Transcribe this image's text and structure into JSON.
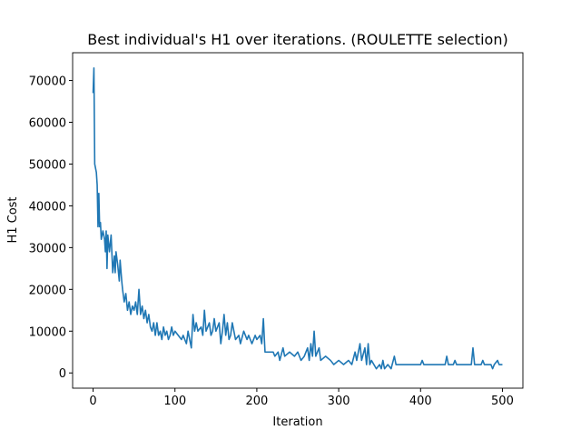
{
  "chart_data": {
    "type": "line",
    "title": "Best individual's H1 over iterations. (ROULETTE selection)",
    "x_label": "Iteration",
    "y_label": "H1 Cost",
    "xlim": [
      -25,
      525
    ],
    "ylim": [
      -3650,
      76650
    ],
    "xticks": [
      0,
      100,
      200,
      300,
      400,
      500
    ],
    "yticks": [
      0,
      10000,
      20000,
      30000,
      40000,
      50000,
      60000,
      70000
    ],
    "series": [
      {
        "color": "#1f77b4",
        "x": [
          0,
          1,
          2,
          3,
          4,
          5,
          6,
          7,
          8,
          9,
          10,
          12,
          14,
          15,
          16,
          17,
          18,
          20,
          22,
          24,
          26,
          27,
          28,
          30,
          32,
          33,
          35,
          36,
          38,
          40,
          42,
          44,
          46,
          48,
          50,
          52,
          54,
          56,
          58,
          60,
          62,
          64,
          66,
          68,
          70,
          72,
          74,
          76,
          78,
          80,
          82,
          84,
          86,
          88,
          90,
          92,
          94,
          96,
          98,
          100,
          104,
          108,
          110,
          114,
          116,
          118,
          120,
          122,
          124,
          126,
          128,
          132,
          134,
          136,
          138,
          142,
          144,
          146,
          148,
          150,
          154,
          156,
          158,
          160,
          162,
          164,
          166,
          168,
          170,
          174,
          178,
          180,
          184,
          188,
          190,
          194,
          198,
          200,
          204,
          206,
          208,
          210,
          220,
          222,
          226,
          228,
          232,
          234,
          240,
          246,
          250,
          254,
          258,
          262,
          264,
          266,
          268,
          270,
          272,
          276,
          278,
          284,
          290,
          294,
          300,
          306,
          312,
          316,
          320,
          322,
          326,
          328,
          332,
          334,
          336,
          338,
          340,
          346,
          350,
          352,
          354,
          356,
          360,
          364,
          368,
          370,
          400,
          402,
          404,
          430,
          432,
          434,
          440,
          442,
          444,
          462,
          464,
          466,
          474,
          476,
          478,
          486,
          488,
          490,
          494,
          496,
          500
        ],
        "values": [
          67000,
          73000,
          50000,
          49000,
          48000,
          45000,
          35000,
          43000,
          35000,
          36000,
          32000,
          34000,
          32000,
          29000,
          34000,
          25000,
          33000,
          29000,
          33000,
          24000,
          28000,
          24000,
          29000,
          26000,
          22000,
          27000,
          22000,
          20000,
          17000,
          19000,
          15000,
          17000,
          14000,
          16000,
          15000,
          17000,
          14000,
          20000,
          14000,
          16000,
          13000,
          15000,
          12000,
          14000,
          11000,
          10000,
          12000,
          9000,
          12000,
          9000,
          10000,
          8000,
          11000,
          9000,
          10000,
          8000,
          9000,
          11000,
          9000,
          10000,
          9000,
          8000,
          9000,
          7000,
          10000,
          8000,
          6000,
          14000,
          10000,
          12000,
          10000,
          11000,
          9000,
          15000,
          10000,
          12000,
          9000,
          10000,
          13000,
          10000,
          12000,
          7000,
          10000,
          14000,
          9000,
          12000,
          8000,
          9000,
          12000,
          8000,
          9000,
          7000,
          10000,
          8000,
          9000,
          7000,
          9000,
          8000,
          9000,
          7000,
          13000,
          5000,
          5000,
          4000,
          5000,
          3000,
          6000,
          4000,
          5000,
          4000,
          5000,
          3000,
          4000,
          6000,
          3000,
          7000,
          4000,
          10000,
          4000,
          6000,
          3000,
          4000,
          3000,
          2000,
          3000,
          2000,
          3000,
          2000,
          5000,
          3000,
          7000,
          3000,
          6000,
          2000,
          7000,
          2000,
          3000,
          1000,
          2000,
          1000,
          3000,
          1000,
          2000,
          1000,
          4000,
          2000,
          2000,
          3000,
          2000,
          2000,
          4000,
          2000,
          2000,
          3000,
          2000,
          2000,
          6000,
          2000,
          2000,
          3000,
          2000,
          2000,
          1000,
          2000,
          3000,
          2000,
          2000
        ]
      }
    ]
  }
}
